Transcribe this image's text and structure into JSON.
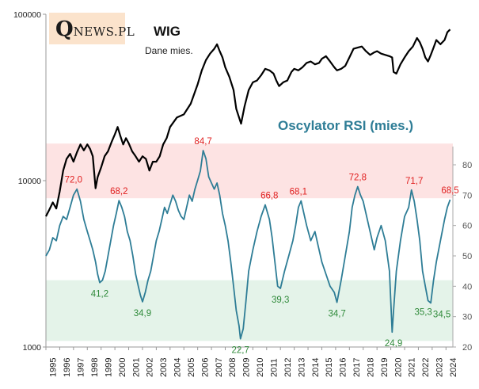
{
  "logo": {
    "q": "Q",
    "rest": "NEWS.PL"
  },
  "wig": {
    "title": "WIG",
    "subtitle": "Dane mies."
  },
  "rsi": {
    "title": "Oscylator RSI (mies.)"
  },
  "colors": {
    "wig": "#000000",
    "rsi": "#2e7d96",
    "overbought": "#fde3e3",
    "oversold": "#e4f3e9",
    "high_label": "#e02020",
    "low_label": "#2f8a3a"
  },
  "chart_data": {
    "type": "line",
    "x_ticks": [
      "1995",
      "1996",
      "1997",
      "1998",
      "1999",
      "2000",
      "2001",
      "2002",
      "2003",
      "2004",
      "2005",
      "2006",
      "2007",
      "2008",
      "2009",
      "2010",
      "2011",
      "2012",
      "2013",
      "2014",
      "2015",
      "2016",
      "2017",
      "2018",
      "2019",
      "2020",
      "2021",
      "2022",
      "2023",
      "2024"
    ],
    "x_range": [
      1995.0,
      2024.5
    ],
    "left_axis": {
      "scale": "log",
      "range": [
        1000,
        100000
      ],
      "ticks": [
        "1000",
        "10000",
        "100000"
      ]
    },
    "right_axis": {
      "scale": "linear",
      "range": [
        20,
        85
      ],
      "ticks": [
        "20",
        "30",
        "40",
        "50",
        "60",
        "70",
        "80"
      ]
    },
    "bands": {
      "overbought": [
        69,
        87
      ],
      "oversold": [
        22,
        42
      ]
    },
    "series": [
      {
        "name": "WIG",
        "axis": "left",
        "x": [
          1995.0,
          1995.25,
          1995.5,
          1995.75,
          1996.0,
          1996.25,
          1996.5,
          1996.75,
          1997.0,
          1997.25,
          1997.5,
          1997.75,
          1998.0,
          1998.2,
          1998.4,
          1998.6,
          1998.75,
          1999.0,
          1999.25,
          1999.5,
          1999.75,
          2000.0,
          2000.2,
          2000.4,
          2000.6,
          2000.8,
          2001.0,
          2001.25,
          2001.5,
          2001.75,
          2002.0,
          2002.25,
          2002.5,
          2002.75,
          2003.0,
          2003.25,
          2003.5,
          2003.75,
          2004.0,
          2004.5,
          2005.0,
          2005.5,
          2006.0,
          2006.3,
          2006.6,
          2006.9,
          2007.2,
          2007.4,
          2007.6,
          2007.8,
          2008.0,
          2008.3,
          2008.6,
          2008.8,
          2009.0,
          2009.15,
          2009.4,
          2009.7,
          2010.0,
          2010.3,
          2010.6,
          2010.9,
          2011.2,
          2011.5,
          2011.7,
          2011.9,
          2012.2,
          2012.5,
          2012.8,
          2013.0,
          2013.3,
          2013.6,
          2013.9,
          2014.2,
          2014.5,
          2014.8,
          2015.0,
          2015.3,
          2015.6,
          2015.9,
          2016.1,
          2016.4,
          2016.7,
          2017.0,
          2017.3,
          2017.6,
          2017.9,
          2018.2,
          2018.5,
          2018.8,
          2019.0,
          2019.3,
          2019.6,
          2019.9,
          2020.1,
          2020.2,
          2020.4,
          2020.7,
          2021.0,
          2021.3,
          2021.6,
          2021.9,
          2022.1,
          2022.3,
          2022.5,
          2022.7,
          2022.9,
          2023.1,
          2023.3,
          2023.6,
          2023.9,
          2024.1,
          2024.3
        ],
        "values": [
          6100,
          6700,
          7400,
          6800,
          8600,
          11500,
          13500,
          14500,
          13000,
          14800,
          16500,
          15200,
          16500,
          15500,
          14000,
          9000,
          10500,
          12000,
          14000,
          15000,
          17000,
          19000,
          21000,
          18500,
          16500,
          18000,
          16800,
          15000,
          14000,
          13000,
          14000,
          13500,
          11500,
          13000,
          13000,
          14000,
          16500,
          18000,
          21000,
          24000,
          25000,
          29000,
          38000,
          46000,
          53000,
          58000,
          62000,
          66000,
          60000,
          55000,
          48000,
          42000,
          35000,
          27000,
          24000,
          22000,
          28000,
          35000,
          39000,
          40000,
          43000,
          47000,
          46000,
          44000,
          40000,
          37000,
          39000,
          40000,
          45000,
          47000,
          46000,
          48000,
          51000,
          52000,
          50000,
          51000,
          54000,
          56000,
          52000,
          48000,
          46000,
          47000,
          49000,
          55000,
          62000,
          63000,
          64000,
          60000,
          57000,
          59000,
          60000,
          58000,
          57000,
          56000,
          55000,
          45000,
          44000,
          50000,
          55000,
          60000,
          64000,
          72000,
          68000,
          62000,
          55000,
          52000,
          57000,
          63000,
          70000,
          66000,
          70000,
          78000,
          81000
        ]
      },
      {
        "name": "RSI",
        "axis": "right",
        "x": [
          1995.0,
          1995.25,
          1995.5,
          1995.75,
          1996.0,
          1996.25,
          1996.5,
          1996.75,
          1997.0,
          1997.25,
          1997.5,
          1997.75,
          1998.0,
          1998.2,
          1998.4,
          1998.6,
          1998.75,
          1998.9,
          1999.1,
          1999.3,
          1999.5,
          1999.7,
          1999.9,
          2000.1,
          2000.3,
          2000.5,
          2000.7,
          2000.9,
          2001.1,
          2001.3,
          2001.5,
          2001.7,
          2001.85,
          2002.0,
          2002.2,
          2002.4,
          2002.6,
          2002.8,
          2003.0,
          2003.2,
          2003.4,
          2003.6,
          2003.8,
          2004.0,
          2004.2,
          2004.4,
          2004.6,
          2004.8,
          2005.0,
          2005.2,
          2005.4,
          2005.6,
          2005.8,
          2006.0,
          2006.2,
          2006.4,
          2006.6,
          2006.8,
          2007.0,
          2007.2,
          2007.4,
          2007.6,
          2007.8,
          2008.0,
          2008.2,
          2008.4,
          2008.6,
          2008.8,
          2009.0,
          2009.1,
          2009.3,
          2009.5,
          2009.7,
          2010.0,
          2010.3,
          2010.6,
          2010.9,
          2011.2,
          2011.4,
          2011.6,
          2011.8,
          2012.0,
          2012.3,
          2012.6,
          2012.9,
          2013.1,
          2013.3,
          2013.5,
          2013.7,
          2013.9,
          2014.2,
          2014.5,
          2014.8,
          2015.0,
          2015.3,
          2015.6,
          2015.9,
          2016.1,
          2016.4,
          2016.7,
          2017.0,
          2017.2,
          2017.4,
          2017.6,
          2017.8,
          2018.0,
          2018.2,
          2018.4,
          2018.6,
          2018.8,
          2019.0,
          2019.3,
          2019.6,
          2019.9,
          2020.1,
          2020.2,
          2020.4,
          2020.7,
          2021.0,
          2021.3,
          2021.5,
          2021.7,
          2021.9,
          2022.1,
          2022.3,
          2022.5,
          2022.7,
          2022.9,
          2023.1,
          2023.3,
          2023.6,
          2023.9,
          2024.1,
          2024.3
        ],
        "values": [
          50,
          52,
          56,
          55,
          60,
          63,
          62,
          66,
          70,
          72,
          68,
          62,
          58,
          55,
          52,
          48,
          44,
          41.2,
          42,
          45,
          50,
          55,
          60,
          64,
          68.2,
          66,
          63,
          58,
          55,
          50,
          44,
          40,
          37,
          34.9,
          38,
          42,
          45,
          50,
          55,
          58,
          62,
          66,
          64,
          67,
          70,
          68,
          65,
          63,
          62,
          66,
          70,
          68,
          72,
          75,
          78,
          84.7,
          82,
          76,
          74,
          72,
          74,
          70,
          64,
          60,
          55,
          48,
          40,
          32,
          27,
          22.7,
          26,
          35,
          45,
          52,
          58,
          63,
          66.8,
          62,
          56,
          48,
          40,
          39.3,
          45,
          50,
          55,
          60,
          66,
          68.1,
          64,
          60,
          55,
          58,
          52,
          48,
          44,
          40,
          38,
          34.7,
          42,
          50,
          58,
          66,
          70,
          72.8,
          70,
          68,
          64,
          60,
          56,
          52,
          56,
          60,
          55,
          45,
          24.9,
          32,
          45,
          55,
          63,
          66,
          71.7,
          68,
          62,
          55,
          45,
          40,
          35.3,
          34.5,
          42,
          48,
          55,
          62,
          66,
          68.5
        ]
      }
    ],
    "annotations": [
      {
        "text": "72,0",
        "x": 1997.0,
        "y": 72.0,
        "kind": "high"
      },
      {
        "text": "41,2",
        "x": 1998.9,
        "y": 41.2,
        "kind": "low"
      },
      {
        "text": "68,2",
        "x": 2000.3,
        "y": 68.2,
        "kind": "high"
      },
      {
        "text": "34,9",
        "x": 2002.0,
        "y": 34.9,
        "kind": "low"
      },
      {
        "text": "84,7",
        "x": 2006.4,
        "y": 84.7,
        "kind": "high"
      },
      {
        "text": "22,7",
        "x": 2009.1,
        "y": 22.7,
        "kind": "low"
      },
      {
        "text": "66,8",
        "x": 2011.2,
        "y": 66.8,
        "kind": "high"
      },
      {
        "text": "39,3",
        "x": 2012.0,
        "y": 39.3,
        "kind": "low"
      },
      {
        "text": "68,1",
        "x": 2013.3,
        "y": 68.1,
        "kind": "high"
      },
      {
        "text": "34,7",
        "x": 2016.1,
        "y": 34.7,
        "kind": "low"
      },
      {
        "text": "72,8",
        "x": 2017.6,
        "y": 72.8,
        "kind": "high"
      },
      {
        "text": "24,9",
        "x": 2020.2,
        "y": 24.9,
        "kind": "low"
      },
      {
        "text": "71,7",
        "x": 2021.7,
        "y": 71.7,
        "kind": "high"
      },
      {
        "text": "35,3",
        "x": 2022.7,
        "y": 35.3,
        "kind": "low"
      },
      {
        "text": "34,5",
        "x": 2022.9,
        "y": 34.5,
        "kind": "low"
      },
      {
        "text": "68,5",
        "x": 2024.3,
        "y": 68.5,
        "kind": "high"
      }
    ]
  }
}
